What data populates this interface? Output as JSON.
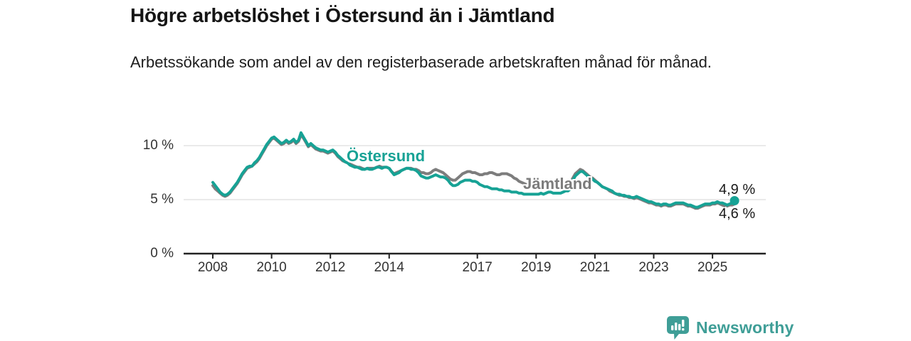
{
  "header": {
    "title": "Högre arbetslöshet i Östersund än i Jämtland",
    "subtitle": "Arbetssökande som andel av den registerbaserade arbetskraften månad för månad."
  },
  "footer": {
    "brand": "Newsworthy",
    "brand_color": "#3f9e97"
  },
  "chart_data": {
    "type": "line",
    "title": "Högre arbetslöshet i Östersund än i Jämtland",
    "subtitle": "Arbetssökande som andel av den registerbaserade arbetskraften månad för månad.",
    "unit": "%",
    "frequency": "monthly",
    "x_start": "2008-01",
    "x_end": "2025-10",
    "x_start_year": 2008,
    "x_tick_years": [
      2008,
      2010,
      2012,
      2014,
      2017,
      2019,
      2021,
      2023,
      2025
    ],
    "x_tick_labels": [
      "2008",
      "2010",
      "2012",
      "2014",
      "2017",
      "2019",
      "2021",
      "2023",
      "2025"
    ],
    "y_ticks": [
      {
        "value": 0,
        "label": "0 %"
      },
      {
        "value": 5,
        "label": "5 %"
      },
      {
        "value": 10,
        "label": "10 %"
      }
    ],
    "ylim": [
      0,
      11.5
    ],
    "grid": "horizontal",
    "legend": "inline-labels",
    "axis_color": "#222222",
    "gridline_color": "#e3e3e3",
    "series": [
      {
        "name": "Jämtland",
        "color": "#7d7d7d",
        "label_color": "#7c7c7c",
        "end_value": 4.6,
        "end_label": "4,6 %",
        "end_dot": false,
        "values": [
          6.3,
          6.0,
          5.8,
          5.6,
          5.4,
          5.3,
          5.4,
          5.6,
          5.9,
          6.2,
          6.5,
          6.9,
          7.3,
          7.6,
          7.9,
          8.0,
          8.1,
          8.3,
          8.5,
          8.8,
          9.2,
          9.6,
          10.0,
          10.3,
          10.6,
          10.7,
          10.5,
          10.3,
          10.1,
          10.2,
          10.4,
          10.2,
          10.3,
          10.5,
          10.2,
          10.4,
          11.0,
          10.7,
          10.3,
          9.9,
          10.1,
          9.9,
          9.7,
          9.6,
          9.5,
          9.5,
          9.4,
          9.3,
          9.4,
          9.5,
          9.3,
          9.0,
          8.8,
          8.6,
          8.5,
          8.4,
          8.3,
          8.2,
          8.1,
          8.0,
          8.0,
          7.9,
          7.8,
          7.9,
          7.9,
          7.9,
          7.9,
          8.0,
          8.1,
          8.0,
          8.0,
          8.0,
          7.9,
          7.6,
          7.4,
          7.5,
          7.6,
          7.7,
          7.8,
          7.9,
          7.9,
          7.9,
          7.8,
          7.8,
          7.7,
          7.5,
          7.5,
          7.4,
          7.4,
          7.5,
          7.7,
          7.8,
          7.7,
          7.6,
          7.5,
          7.3,
          7.1,
          6.9,
          6.8,
          6.8,
          7.0,
          7.2,
          7.4,
          7.5,
          7.6,
          7.6,
          7.5,
          7.5,
          7.4,
          7.3,
          7.3,
          7.4,
          7.4,
          7.5,
          7.5,
          7.4,
          7.3,
          7.3,
          7.4,
          7.4,
          7.4,
          7.3,
          7.2,
          7.0,
          6.9,
          6.7,
          6.6,
          6.5,
          6.4,
          6.3,
          6.3,
          6.2,
          6.2,
          6.2,
          6.2,
          6.2,
          6.2,
          6.3,
          6.3,
          6.2,
          6.2,
          6.2,
          6.3,
          6.3,
          6.4,
          6.4,
          6.6,
          7.0,
          7.4,
          7.6,
          7.8,
          7.7,
          7.5,
          7.3,
          7.1,
          7.0,
          6.8,
          6.6,
          6.4,
          6.2,
          6.1,
          6.0,
          5.8,
          5.7,
          5.6,
          5.5,
          5.4,
          5.4,
          5.3,
          5.3,
          5.2,
          5.2,
          5.1,
          5.2,
          5.1,
          5.0,
          4.9,
          4.8,
          4.7,
          4.7,
          4.6,
          4.5,
          4.5,
          4.4,
          4.5,
          4.5,
          4.4,
          4.4,
          4.5,
          4.6,
          4.6,
          4.6,
          4.6,
          4.5,
          4.4,
          4.4,
          4.3,
          4.2,
          4.2,
          4.3,
          4.4,
          4.5,
          4.5,
          4.5,
          4.6,
          4.6,
          4.7,
          4.6,
          4.5,
          4.4,
          4.4,
          4.5,
          4.5,
          4.6
        ]
      },
      {
        "name": "Östersund",
        "color": "#17a295",
        "label_color": "#17a295",
        "end_value": 4.9,
        "end_label": "4,9 %",
        "end_dot": true,
        "values": [
          6.6,
          6.3,
          6.0,
          5.7,
          5.5,
          5.4,
          5.5,
          5.7,
          6.0,
          6.3,
          6.6,
          7.0,
          7.4,
          7.7,
          8.0,
          8.1,
          8.1,
          8.4,
          8.6,
          8.9,
          9.3,
          9.7,
          10.1,
          10.4,
          10.7,
          10.8,
          10.6,
          10.4,
          10.2,
          10.3,
          10.5,
          10.3,
          10.4,
          10.6,
          10.3,
          10.5,
          11.2,
          10.8,
          10.4,
          10.0,
          10.2,
          10.0,
          9.8,
          9.7,
          9.6,
          9.6,
          9.5,
          9.4,
          9.5,
          9.6,
          9.4,
          9.1,
          8.9,
          8.7,
          8.5,
          8.4,
          8.2,
          8.1,
          8.0,
          8.0,
          7.9,
          7.8,
          7.8,
          7.9,
          7.8,
          7.8,
          7.9,
          8.0,
          8.0,
          7.9,
          8.0,
          8.0,
          7.9,
          7.6,
          7.3,
          7.4,
          7.5,
          7.7,
          7.8,
          7.9,
          7.9,
          7.8,
          7.8,
          7.7,
          7.5,
          7.2,
          7.1,
          7.0,
          7.0,
          7.1,
          7.2,
          7.3,
          7.2,
          7.1,
          7.1,
          7.0,
          6.8,
          6.5,
          6.3,
          6.3,
          6.4,
          6.6,
          6.7,
          6.8,
          6.8,
          6.8,
          6.7,
          6.7,
          6.6,
          6.4,
          6.3,
          6.2,
          6.2,
          6.1,
          6.0,
          6.0,
          6.0,
          5.9,
          5.9,
          5.8,
          5.8,
          5.8,
          5.7,
          5.7,
          5.7,
          5.6,
          5.6,
          5.5,
          5.5,
          5.5,
          5.5,
          5.5,
          5.5,
          5.5,
          5.6,
          5.5,
          5.6,
          5.7,
          5.7,
          5.6,
          5.6,
          5.6,
          5.6,
          5.7,
          5.8,
          5.8,
          6.0,
          6.8,
          7.2,
          7.4,
          7.6,
          7.6,
          7.4,
          7.2,
          7.0,
          6.9,
          6.7,
          6.6,
          6.4,
          6.2,
          6.1,
          6.0,
          5.9,
          5.8,
          5.6,
          5.5,
          5.5,
          5.4,
          5.4,
          5.3,
          5.3,
          5.2,
          5.2,
          5.3,
          5.2,
          5.1,
          5.0,
          4.9,
          4.8,
          4.8,
          4.7,
          4.6,
          4.6,
          4.5,
          4.6,
          4.6,
          4.5,
          4.5,
          4.6,
          4.7,
          4.7,
          4.7,
          4.7,
          4.6,
          4.5,
          4.5,
          4.4,
          4.3,
          4.3,
          4.4,
          4.5,
          4.6,
          4.6,
          4.6,
          4.7,
          4.7,
          4.8,
          4.7,
          4.7,
          4.6,
          4.5,
          4.6,
          4.7,
          4.9
        ]
      }
    ]
  }
}
